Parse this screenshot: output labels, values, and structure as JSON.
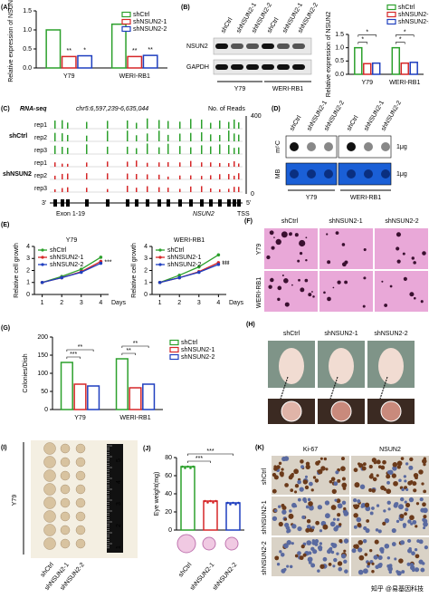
{
  "chart_data": [
    {
      "type": "bar",
      "panel": "(A)",
      "ylabel": "Relative expression of NSUN2",
      "categories": [
        "Y79",
        "WERI-RB1"
      ],
      "series": [
        {
          "name": "shCtrl",
          "color": "#2ca02c",
          "values": [
            1.0,
            1.15
          ]
        },
        {
          "name": "shNSUN2-1",
          "color": "#d62728",
          "values": [
            0.3,
            0.3
          ],
          "stars": [
            "**",
            "**"
          ]
        },
        {
          "name": "shNSUN2-2",
          "color": "#1f3fbf",
          "values": [
            0.32,
            0.33
          ],
          "stars": [
            "*",
            "**"
          ]
        }
      ],
      "ylim": [
        0,
        1.5
      ],
      "yticks": [
        {
          "value": 0,
          "label": "0.0"
        },
        {
          "value": 0.5,
          "label": "0.5"
        },
        {
          "value": 1,
          "label": "1.0"
        },
        {
          "value": 1.5,
          "label": "1.5"
        }
      ],
      "legend": "upper right"
    },
    {
      "type": "bar",
      "ylabel": "Relative expression of NSUN2",
      "categories": [
        "Y79",
        "WERI-RB1"
      ],
      "series": [
        {
          "name": "shCtrl",
          "color": "#2ca02c",
          "values": [
            1.0,
            1.0
          ]
        },
        {
          "name": "shNSUN2-1",
          "color": "#d62728",
          "values": [
            0.4,
            0.42
          ]
        },
        {
          "name": "shNSUN2-2",
          "color": "#1f3fbf",
          "values": [
            0.42,
            0.45
          ]
        }
      ],
      "comparisons": [
        [
          "*",
          "*"
        ],
        [
          "*",
          "*"
        ]
      ],
      "ylim": [
        0,
        1.5
      ],
      "yticks": [
        {
          "value": 0,
          "label": "0.0"
        },
        {
          "value": 0.5,
          "label": "0.5"
        },
        {
          "value": 1,
          "label": "1.0"
        },
        {
          "value": 1.5,
          "label": "1.5"
        }
      ],
      "legend": "above right"
    },
    {
      "type": "line",
      "panel": "(E)",
      "title": "Y79",
      "ylabel": "Relative cell growth",
      "xlabel": "Days",
      "x": [
        1,
        2,
        3,
        4
      ],
      "series": [
        {
          "name": "shCtrl",
          "color": "#2ca02c",
          "values": [
            1,
            1.5,
            2.1,
            3.1
          ]
        },
        {
          "name": "shNSUN2-1",
          "color": "#d62728",
          "values": [
            1,
            1.4,
            1.9,
            2.75
          ]
        },
        {
          "name": "shNSUN2-2",
          "color": "#1f3fbf",
          "values": [
            1,
            1.4,
            1.85,
            2.6
          ]
        }
      ],
      "annotations": [
        "***"
      ],
      "xlim": [
        0.6,
        4.4
      ],
      "xticks": [
        1,
        2,
        3,
        4
      ],
      "ylim": [
        0,
        4
      ],
      "yticks": [
        0,
        1,
        2,
        3,
        4
      ],
      "legend": "upper left"
    },
    {
      "type": "line",
      "title": "WERI-RB1",
      "ylabel": "Relative cell growth",
      "xlabel": "Days",
      "x": [
        1,
        2,
        3,
        4
      ],
      "series": [
        {
          "name": "shCtrl",
          "color": "#2ca02c",
          "values": [
            1,
            1.6,
            2.3,
            3.3
          ]
        },
        {
          "name": "shNSUN2-1",
          "color": "#d62728",
          "values": [
            1,
            1.4,
            1.9,
            2.65
          ]
        },
        {
          "name": "shNSUN2-2",
          "color": "#1f3fbf",
          "values": [
            1,
            1.4,
            1.85,
            2.5
          ]
        }
      ],
      "annotations": [
        "***",
        "***"
      ],
      "xlim": [
        0.6,
        4.4
      ],
      "xticks": [
        1,
        2,
        3,
        4
      ],
      "ylim": [
        0,
        4
      ],
      "yticks": [
        0,
        1,
        2,
        3,
        4
      ],
      "legend": "upper left"
    },
    {
      "type": "bar",
      "panel": "(G)",
      "ylabel": "Colonies/Dish",
      "categories": [
        "Y79",
        "WERI-RB1"
      ],
      "series": [
        {
          "name": "shCtrl",
          "color": "#2ca02c",
          "values": [
            130,
            140
          ]
        },
        {
          "name": "shNSUN2-1",
          "color": "#d62728",
          "values": [
            70,
            60
          ]
        },
        {
          "name": "shNSUN2-2",
          "color": "#1f3fbf",
          "values": [
            65,
            70
          ]
        }
      ],
      "comparisons": [
        [
          "***",
          "**"
        ],
        [
          "**",
          "**"
        ]
      ],
      "ylim": [
        0,
        200
      ],
      "yticks": [
        0,
        50,
        100,
        150,
        200
      ],
      "legend": "right"
    },
    {
      "type": "bar",
      "panel": "(J)",
      "ylabel": "Eye weight(mg)",
      "categories": [
        "shCtrl",
        "shNSUN2-1",
        "shNSUN2-2"
      ],
      "colors": [
        "#2ca02c",
        "#d62728",
        "#1f3fbf"
      ],
      "values": [
        70,
        32,
        30
      ],
      "comparisons": [
        "***",
        "***"
      ],
      "ylim": [
        0,
        80
      ],
      "yticks": [
        0,
        20,
        40,
        60,
        80
      ]
    }
  ],
  "panels": {
    "B": {
      "letter": "(B)",
      "lanes": [
        "shCtrl",
        "shNSUN2-1",
        "shNSUN2-2",
        "shCtrl",
        "shNSUN2-1",
        "shNSUN2-2"
      ],
      "rows": [
        "NSUN2",
        "GAPDH"
      ],
      "groups": [
        "Y79",
        "WERI-RB1"
      ]
    },
    "C": {
      "letter": "(C)",
      "title": "RNA-seq",
      "region": "chr5:6,597,239-6,635,044",
      "reads_label": "No. of Reads",
      "reads_max": 400,
      "reads_min": 0,
      "groups": [
        "shCtrl",
        "shNSUN2"
      ],
      "reps": [
        "rep1",
        "rep2",
        "rep3"
      ],
      "end3": "3'",
      "end5": "5'",
      "exon": "Exon 1-19",
      "gene": "NSUN2",
      "tss": "TSS"
    },
    "D": {
      "letter": "(D)",
      "lanes": [
        "shCtrl",
        "shNSUN2-1",
        "shNSUN2-2",
        "shCtrl",
        "shNSUN2-1",
        "shNSUN2-2"
      ],
      "rows": [
        "m⁵C",
        "MB"
      ],
      "amount": "1μg",
      "groups": [
        "Y79",
        "WERI-RB1"
      ]
    },
    "F": {
      "letter": "(F)",
      "cols": [
        "shCtrl",
        "shNSUN2-1",
        "shNSUN2-2"
      ],
      "rows": [
        "Y79",
        "WERI-RB1"
      ]
    },
    "H": {
      "letter": "(H)",
      "cols": [
        "shCtrl",
        "shNSUN2-1",
        "shNSUN2-2"
      ]
    },
    "I": {
      "letter": "(I)",
      "row": "Y79",
      "cols": [
        "shCtrl",
        "shNSUN2-1",
        "shNSUN2-2"
      ],
      "ruler": [
        1,
        2,
        3,
        4,
        5
      ]
    },
    "K": {
      "letter": "(K)",
      "cols": [
        "Ki-67",
        "NSUN2"
      ],
      "rows": [
        "shCtrl",
        "shNSUN2-1",
        "shNSUN2-2"
      ]
    }
  },
  "watermark": "知乎 @易基因科技"
}
